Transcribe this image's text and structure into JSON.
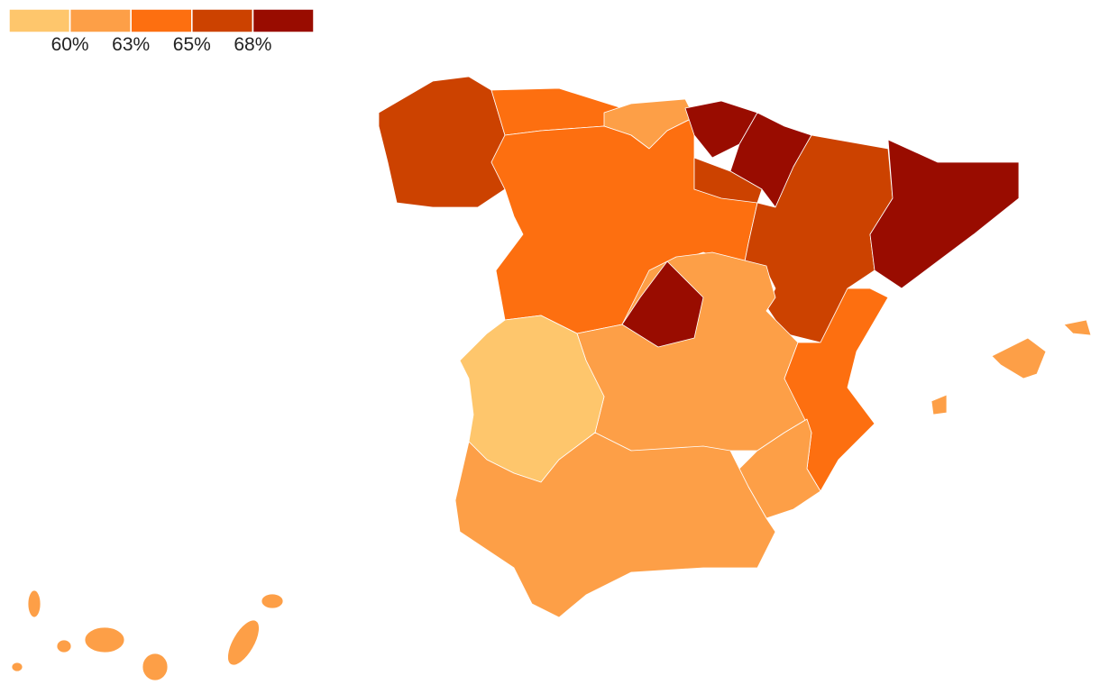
{
  "legend": {
    "colors": [
      "#fec66c",
      "#fd9f47",
      "#fd6f10",
      "#cc4200",
      "#990c00"
    ],
    "ticks": [
      {
        "value": 60,
        "label": "60%"
      },
      {
        "value": 63,
        "label": "63%"
      },
      {
        "value": 65,
        "label": "65%"
      },
      {
        "value": 68,
        "label": "68%"
      }
    ]
  }
}
